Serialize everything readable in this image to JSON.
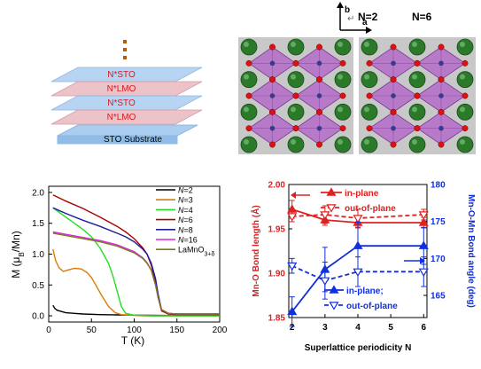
{
  "stack": {
    "layers": [
      "N*STO",
      "N*LMO",
      "N*STO",
      "N*LMO"
    ],
    "substrate": "STO Substrate",
    "colors": {
      "sto": "#aacdf0",
      "lmo": "#e8b8c0",
      "text": "#d02020",
      "ellipsis": "#b05a10"
    }
  },
  "crystal": {
    "left_label": "N=2",
    "left_marker": "↵",
    "right_label": "N=6",
    "axis_b": "b",
    "axis_a": "a",
    "colors": {
      "sr": "#2a7a2a",
      "o": "#dd1111",
      "octahedron": "#b060c8",
      "background": "#c8c8c8"
    }
  },
  "chart_data": [
    {
      "type": "line",
      "xlabel": "T (K)",
      "ylabel": "M (μB/Mn)",
      "ylabel_parts": {
        "main": "M (",
        "mu": "μ",
        "sub": "B",
        "tail": "/Mn)"
      },
      "xlim": [
        0,
        200
      ],
      "ylim": [
        -0.1,
        2.1
      ],
      "xticks": [
        0,
        50,
        100,
        150,
        200
      ],
      "yticks": [
        0.0,
        0.5,
        1.0,
        1.5,
        2.0
      ],
      "ytick_labels": [
        "0.0",
        "0.5",
        "1.0",
        "1.5",
        "2.0"
      ],
      "legend_position": "top-right",
      "series": [
        {
          "name": "N=2",
          "legend_prefix": "N",
          "legend_suffix": "=2",
          "color": "#000000",
          "x": [
            5,
            7,
            10,
            15,
            20,
            30,
            40,
            60,
            80,
            100,
            150,
            200
          ],
          "y": [
            0.17,
            0.12,
            0.09,
            0.07,
            0.05,
            0.04,
            0.03,
            0.02,
            0.015,
            0.01,
            0.005,
            0.005
          ]
        },
        {
          "name": "N=3",
          "legend_prefix": "N",
          "legend_suffix": "=3",
          "color": "#e07a00",
          "x": [
            5,
            8,
            12,
            17,
            22,
            30,
            38,
            45,
            50,
            55,
            62,
            70,
            78,
            85,
            95,
            110,
            200
          ],
          "y": [
            1.08,
            0.9,
            0.78,
            0.72,
            0.74,
            0.77,
            0.76,
            0.7,
            0.62,
            0.5,
            0.33,
            0.15,
            0.05,
            0.02,
            0.01,
            0.0,
            0.0
          ]
        },
        {
          "name": "N=4",
          "legend_prefix": "N",
          "legend_suffix": "=4",
          "color": "#22dd22",
          "x": [
            5,
            10,
            20,
            30,
            40,
            50,
            60,
            70,
            75,
            80,
            85,
            90,
            100,
            120,
            200
          ],
          "y": [
            1.75,
            1.7,
            1.6,
            1.5,
            1.4,
            1.28,
            1.1,
            0.85,
            0.65,
            0.4,
            0.15,
            0.04,
            0.01,
            0.0,
            0.0
          ]
        },
        {
          "name": "N=6",
          "legend_prefix": "N",
          "legend_suffix": "=6",
          "color": "#aa0000",
          "x": [
            5,
            20,
            40,
            60,
            80,
            90,
            100,
            110,
            115,
            120,
            125,
            128,
            132,
            140,
            150,
            200
          ],
          "y": [
            1.96,
            1.86,
            1.74,
            1.6,
            1.45,
            1.36,
            1.25,
            1.1,
            1.0,
            0.82,
            0.55,
            0.3,
            0.08,
            0.03,
            0.02,
            0.02
          ]
        },
        {
          "name": "N=8",
          "legend_prefix": "N",
          "legend_suffix": "=8",
          "color": "#1c1c9c",
          "x": [
            5,
            20,
            40,
            60,
            80,
            90,
            100,
            110,
            115,
            120,
            125,
            128,
            132,
            140,
            150,
            200
          ],
          "y": [
            1.75,
            1.66,
            1.55,
            1.45,
            1.34,
            1.28,
            1.2,
            1.08,
            1.0,
            0.85,
            0.6,
            0.35,
            0.1,
            0.04,
            0.03,
            0.03
          ]
        },
        {
          "name": "N=16",
          "legend_prefix": "N",
          "legend_suffix": "=16",
          "color": "#dd22dd",
          "x": [
            5,
            20,
            40,
            60,
            80,
            100,
            110,
            115,
            120,
            125,
            128,
            132,
            140,
            150,
            200
          ],
          "y": [
            1.36,
            1.32,
            1.27,
            1.22,
            1.15,
            1.04,
            0.94,
            0.86,
            0.74,
            0.5,
            0.3,
            0.1,
            0.04,
            0.03,
            0.03
          ]
        },
        {
          "name": "LaMnO3+δ",
          "legend_prefix": "LaMnO",
          "legend_suffix": "3+δ",
          "color": "#7a7a1a",
          "x": [
            5,
            20,
            40,
            60,
            80,
            100,
            110,
            115,
            120,
            125,
            128,
            132,
            140,
            150,
            200
          ],
          "y": [
            1.34,
            1.3,
            1.25,
            1.2,
            1.13,
            1.02,
            0.93,
            0.85,
            0.74,
            0.5,
            0.3,
            0.1,
            0.04,
            0.03,
            0.03
          ]
        }
      ]
    },
    {
      "type": "line",
      "xlabel": "Superlattice periodicity N",
      "ylabel": "Mn-O Bond length (Å)",
      "y2label": "Mn-O-Mn Bond angle (deg)",
      "xlim": [
        1.9,
        6.1
      ],
      "ylim": [
        1.85,
        2.0
      ],
      "y2lim": [
        162,
        180
      ],
      "xticks": [
        2,
        3,
        4,
        5,
        6
      ],
      "yticks": [
        1.85,
        1.9,
        1.95,
        2.0
      ],
      "ytick_labels": [
        "1.85",
        "1.90",
        "1.95",
        "2.00"
      ],
      "y2ticks": [
        165,
        170,
        175,
        180
      ],
      "colors": {
        "left": "#dd2222",
        "right": "#1030dd"
      },
      "legend_red": {
        "in_plane": "in-plane",
        "out_of_plane": "out-of-plane"
      },
      "legend_blue": {
        "in_plane": "in-plane;",
        "out_of_plane": "out-of-plane"
      },
      "series": [
        {
          "name": "in-plane",
          "axis": "left",
          "x": [
            2,
            3,
            4,
            6
          ],
          "y": [
            1.972,
            1.96,
            1.957,
            1.957
          ],
          "yerr": [
            0.01,
            0.006,
            0.006,
            0.006
          ],
          "style": "solid",
          "marker": "triangle-up"
        },
        {
          "name": "out-of-plane",
          "axis": "left",
          "x": [
            2,
            3,
            4,
            6
          ],
          "y": [
            1.964,
            1.966,
            1.962,
            1.966
          ],
          "yerr": [
            0.006,
            0.01,
            0.01,
            0.006
          ],
          "style": "dashed",
          "marker": "triangle-down"
        },
        {
          "name": "in-plane;",
          "axis": "right",
          "x": [
            2,
            3,
            4,
            6
          ],
          "y": [
            162.8,
            168.5,
            171.7,
            171.7
          ],
          "yerr": [
            2.0,
            3.0,
            3.2,
            2.5
          ],
          "style": "solid",
          "marker": "triangle-up"
        },
        {
          "name": "out-of-plane",
          "axis": "right",
          "x": [
            2,
            3,
            4,
            6
          ],
          "y": [
            169.0,
            167.0,
            168.2,
            168.2
          ],
          "yerr": [
            1.0,
            2.5,
            2.0,
            2.0
          ],
          "style": "dashed",
          "marker": "triangle-down"
        }
      ]
    }
  ]
}
